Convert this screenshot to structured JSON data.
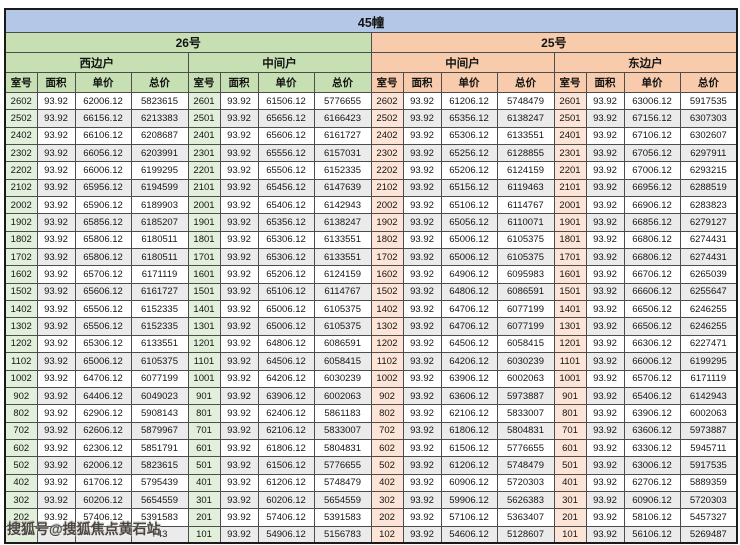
{
  "table": {
    "title": "45幢",
    "buildings": [
      {
        "label": "26号"
      },
      {
        "label": "25号"
      }
    ],
    "columns": [
      "室号",
      "面积",
      "单价",
      "总价"
    ],
    "sections": [
      {
        "building": "26号",
        "unit": "西边户",
        "rows": [
          [
            "2602",
            "93.92",
            "62006.12",
            "5823615"
          ],
          [
            "2502",
            "93.92",
            "66156.12",
            "6213383"
          ],
          [
            "2402",
            "93.92",
            "66106.12",
            "6208687"
          ],
          [
            "2302",
            "93.92",
            "66056.12",
            "6203991"
          ],
          [
            "2202",
            "93.92",
            "66006.12",
            "6199295"
          ],
          [
            "2102",
            "93.92",
            "65956.12",
            "6194599"
          ],
          [
            "2002",
            "93.92",
            "65906.12",
            "6189903"
          ],
          [
            "1902",
            "93.92",
            "65856.12",
            "6185207"
          ],
          [
            "1802",
            "93.92",
            "65806.12",
            "6180511"
          ],
          [
            "1702",
            "93.92",
            "65806.12",
            "6180511"
          ],
          [
            "1602",
            "93.92",
            "65706.12",
            "6171119"
          ],
          [
            "1502",
            "93.92",
            "65606.12",
            "6161727"
          ],
          [
            "1402",
            "93.92",
            "65506.12",
            "6152335"
          ],
          [
            "1302",
            "93.92",
            "65506.12",
            "6152335"
          ],
          [
            "1202",
            "93.92",
            "65306.12",
            "6133551"
          ],
          [
            "1102",
            "93.92",
            "65006.12",
            "6105375"
          ],
          [
            "1002",
            "93.92",
            "64706.12",
            "6077199"
          ],
          [
            "902",
            "93.92",
            "64406.12",
            "6049023"
          ],
          [
            "802",
            "93.92",
            "62906.12",
            "5908143"
          ],
          [
            "702",
            "93.92",
            "62606.12",
            "5879967"
          ],
          [
            "602",
            "93.92",
            "62306.12",
            "5851791"
          ],
          [
            "502",
            "93.92",
            "62006.12",
            "5823615"
          ],
          [
            "402",
            "93.92",
            "61706.12",
            "5795439"
          ],
          [
            "302",
            "93.92",
            "60206.12",
            "5654559"
          ],
          [
            "202",
            "93.92",
            "57406.12",
            "5391583"
          ],
          [
            "",
            "",
            "",
            "743"
          ]
        ]
      },
      {
        "building": "26号",
        "unit": "中间户",
        "rows": [
          [
            "2601",
            "93.92",
            "61506.12",
            "5776655"
          ],
          [
            "2501",
            "93.92",
            "65656.12",
            "6166423"
          ],
          [
            "2401",
            "93.92",
            "65606.12",
            "6161727"
          ],
          [
            "2301",
            "93.92",
            "65556.12",
            "6157031"
          ],
          [
            "2201",
            "93.92",
            "65506.12",
            "6152335"
          ],
          [
            "2101",
            "93.92",
            "65456.12",
            "6147639"
          ],
          [
            "2001",
            "93.92",
            "65406.12",
            "6142943"
          ],
          [
            "1901",
            "93.92",
            "65356.12",
            "6138247"
          ],
          [
            "1801",
            "93.92",
            "65306.12",
            "6133551"
          ],
          [
            "1701",
            "93.92",
            "65306.12",
            "6133551"
          ],
          [
            "1601",
            "93.92",
            "65206.12",
            "6124159"
          ],
          [
            "1501",
            "93.92",
            "65106.12",
            "6114767"
          ],
          [
            "1401",
            "93.92",
            "65006.12",
            "6105375"
          ],
          [
            "1301",
            "93.92",
            "65006.12",
            "6105375"
          ],
          [
            "1201",
            "93.92",
            "64806.12",
            "6086591"
          ],
          [
            "1101",
            "93.92",
            "64506.12",
            "6058415"
          ],
          [
            "1001",
            "93.92",
            "64206.12",
            "6030239"
          ],
          [
            "901",
            "93.92",
            "63906.12",
            "6002063"
          ],
          [
            "801",
            "93.92",
            "62406.12",
            "5861183"
          ],
          [
            "701",
            "93.92",
            "62106.12",
            "5833007"
          ],
          [
            "601",
            "93.92",
            "61806.12",
            "5804831"
          ],
          [
            "501",
            "93.92",
            "61506.12",
            "5776655"
          ],
          [
            "401",
            "93.92",
            "61206.12",
            "5748479"
          ],
          [
            "301",
            "93.92",
            "60206.12",
            "5654559"
          ],
          [
            "201",
            "93.92",
            "57406.12",
            "5391583"
          ],
          [
            "101",
            "93.92",
            "54906.12",
            "5156783"
          ]
        ]
      },
      {
        "building": "25号",
        "unit": "中间户",
        "rows": [
          [
            "2602",
            "93.92",
            "61206.12",
            "5748479"
          ],
          [
            "2502",
            "93.92",
            "65356.12",
            "6138247"
          ],
          [
            "2402",
            "93.92",
            "65306.12",
            "6133551"
          ],
          [
            "2302",
            "93.92",
            "65256.12",
            "6128855"
          ],
          [
            "2202",
            "93.92",
            "65206.12",
            "6124159"
          ],
          [
            "2102",
            "93.92",
            "65156.12",
            "6119463"
          ],
          [
            "2002",
            "93.92",
            "65106.12",
            "6114767"
          ],
          [
            "1902",
            "93.92",
            "65056.12",
            "6110071"
          ],
          [
            "1802",
            "93.92",
            "65006.12",
            "6105375"
          ],
          [
            "1702",
            "93.92",
            "65006.12",
            "6105375"
          ],
          [
            "1602",
            "93.92",
            "64906.12",
            "6095983"
          ],
          [
            "1502",
            "93.92",
            "64806.12",
            "6086591"
          ],
          [
            "1402",
            "93.92",
            "64706.12",
            "6077199"
          ],
          [
            "1302",
            "93.92",
            "64706.12",
            "6077199"
          ],
          [
            "1202",
            "93.92",
            "64506.12",
            "6058415"
          ],
          [
            "1102",
            "93.92",
            "64206.12",
            "6030239"
          ],
          [
            "1002",
            "93.92",
            "63906.12",
            "6002063"
          ],
          [
            "902",
            "93.92",
            "63606.12",
            "5973887"
          ],
          [
            "802",
            "93.92",
            "62106.12",
            "5833007"
          ],
          [
            "702",
            "93.92",
            "61806.12",
            "5804831"
          ],
          [
            "602",
            "93.92",
            "61506.12",
            "5776655"
          ],
          [
            "502",
            "93.92",
            "61206.12",
            "5748479"
          ],
          [
            "402",
            "93.92",
            "60906.12",
            "5720303"
          ],
          [
            "302",
            "93.92",
            "59906.12",
            "5626383"
          ],
          [
            "202",
            "93.92",
            "57106.12",
            "5363407"
          ],
          [
            "102",
            "93.92",
            "54606.12",
            "5128607"
          ]
        ]
      },
      {
        "building": "25号",
        "unit": "东边户",
        "rows": [
          [
            "2601",
            "93.92",
            "63006.12",
            "5917535"
          ],
          [
            "2501",
            "93.92",
            "67156.12",
            "6307303"
          ],
          [
            "2401",
            "93.92",
            "67106.12",
            "6302607"
          ],
          [
            "2301",
            "93.92",
            "67056.12",
            "6297911"
          ],
          [
            "2201",
            "93.92",
            "67006.12",
            "6293215"
          ],
          [
            "2101",
            "93.92",
            "66956.12",
            "6288519"
          ],
          [
            "2001",
            "93.92",
            "66906.12",
            "6283823"
          ],
          [
            "1901",
            "93.92",
            "66856.12",
            "6279127"
          ],
          [
            "1801",
            "93.92",
            "66806.12",
            "6274431"
          ],
          [
            "1701",
            "93.92",
            "66806.12",
            "6274431"
          ],
          [
            "1601",
            "93.92",
            "66706.12",
            "6265039"
          ],
          [
            "1501",
            "93.92",
            "66606.12",
            "6255647"
          ],
          [
            "1401",
            "93.92",
            "66506.12",
            "6246255"
          ],
          [
            "1301",
            "93.92",
            "66506.12",
            "6246255"
          ],
          [
            "1201",
            "93.92",
            "66306.12",
            "6227471"
          ],
          [
            "1101",
            "93.92",
            "66006.12",
            "6199295"
          ],
          [
            "1001",
            "93.92",
            "65706.12",
            "6171119"
          ],
          [
            "901",
            "93.92",
            "65406.12",
            "6142943"
          ],
          [
            "801",
            "93.92",
            "63906.12",
            "6002063"
          ],
          [
            "701",
            "93.92",
            "63606.12",
            "5973887"
          ],
          [
            "601",
            "93.92",
            "63306.12",
            "5945711"
          ],
          [
            "501",
            "93.92",
            "63006.12",
            "5917535"
          ],
          [
            "401",
            "93.92",
            "62706.12",
            "5889359"
          ],
          [
            "301",
            "93.92",
            "60906.12",
            "5720303"
          ],
          [
            "201",
            "93.92",
            "58106.12",
            "5457327"
          ],
          [
            "101",
            "93.92",
            "56106.12",
            "5269487"
          ]
        ]
      }
    ]
  },
  "watermark": {
    "text": "搜狐号@搜狐焦点黄石站",
    "visible_suffix_after": "743"
  },
  "colors": {
    "title_bar": "#b4c7e7",
    "building_26_header": "#c6e0b4",
    "building_26_room_col": "#e2efda",
    "building_25_header": "#f8cbad",
    "building_25_room_col": "#fce4d6",
    "row_stripe": "#ebebeb"
  }
}
